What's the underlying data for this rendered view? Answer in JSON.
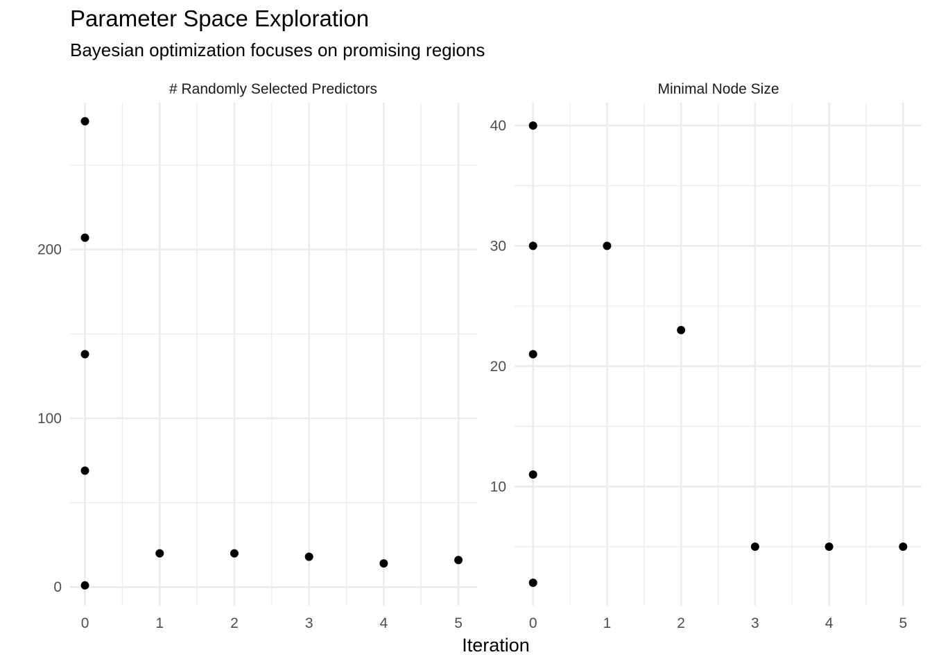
{
  "chart_data": {
    "type": "scatter",
    "title": "Parameter Space Exploration",
    "subtitle": "Bayesian optimization focuses on promising regions",
    "xlabel": "Iteration",
    "ylabel": "",
    "grid": true,
    "legend": "none",
    "point_color": "#000000",
    "x_ticks": [
      0,
      1,
      2,
      3,
      4,
      5
    ],
    "panels": [
      {
        "name": "# Randomly Selected Predictors",
        "xlim": [
          -0.2,
          5.25
        ],
        "ylim": [
          -11,
          287
        ],
        "y_ticks": [
          0,
          100,
          200
        ],
        "y_minor": [
          50,
          150,
          250
        ],
        "points": [
          {
            "x": 0,
            "y": 276
          },
          {
            "x": 0,
            "y": 207
          },
          {
            "x": 0,
            "y": 138
          },
          {
            "x": 0,
            "y": 69
          },
          {
            "x": 0,
            "y": 1
          },
          {
            "x": 1,
            "y": 20
          },
          {
            "x": 2,
            "y": 20
          },
          {
            "x": 3,
            "y": 18
          },
          {
            "x": 4,
            "y": 14
          },
          {
            "x": 5,
            "y": 16
          }
        ]
      },
      {
        "name": "Minimal Node Size",
        "xlim": [
          -0.25,
          5.25
        ],
        "ylim": [
          0.1,
          41.9
        ],
        "y_ticks": [
          10,
          20,
          30,
          40
        ],
        "y_minor": [
          5,
          15,
          25,
          35
        ],
        "points": [
          {
            "x": 0,
            "y": 40
          },
          {
            "x": 0,
            "y": 30
          },
          {
            "x": 0,
            "y": 21
          },
          {
            "x": 0,
            "y": 11
          },
          {
            "x": 0,
            "y": 2
          },
          {
            "x": 1,
            "y": 30
          },
          {
            "x": 2,
            "y": 23
          },
          {
            "x": 3,
            "y": 5
          },
          {
            "x": 4,
            "y": 5
          },
          {
            "x": 5,
            "y": 5
          }
        ]
      }
    ]
  }
}
